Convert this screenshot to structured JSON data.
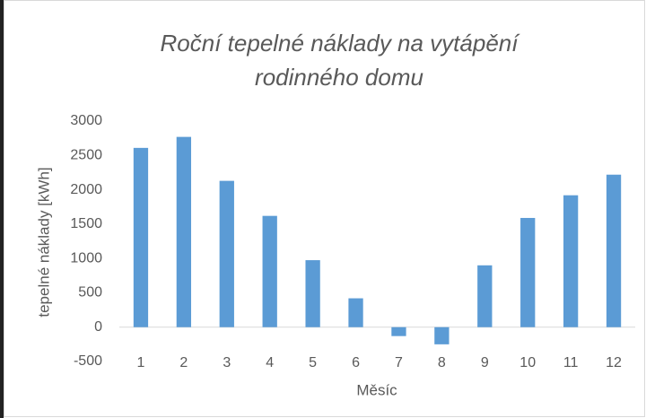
{
  "chart_data": {
    "type": "bar",
    "title": [
      "Roční tepelné náklady na vytápění",
      "rodinného domu"
    ],
    "x_label": "Měsíc",
    "y_label": "tepelné náklady [kWh]",
    "categories": [
      "1",
      "2",
      "3",
      "4",
      "5",
      "6",
      "7",
      "8",
      "9",
      "10",
      "11",
      "12"
    ],
    "values": [
      2610,
      2770,
      2130,
      1620,
      975,
      420,
      -130,
      -250,
      900,
      1590,
      1920,
      2220
    ],
    "color": "#5b9bd5",
    "ylim": [
      -500,
      3000
    ],
    "yticks": [
      -500,
      0,
      500,
      1000,
      1500,
      2000,
      2500,
      3000
    ],
    "grid": false
  }
}
